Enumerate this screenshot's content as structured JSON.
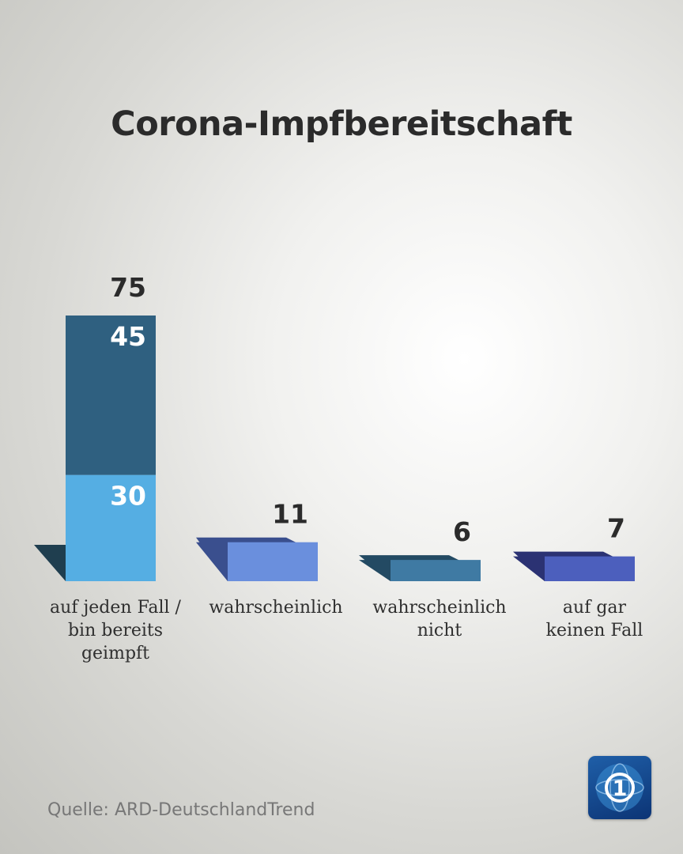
{
  "title": "Corona-Impfbereitschaft",
  "source": "Quelle: ARD-DeutschlandTrend",
  "logo_label": "1",
  "chart_data": {
    "type": "bar",
    "title": "Corona-Impfbereitschaft",
    "categories": [
      "auf jeden Fall / bin bereits geimpft",
      "wahrscheinlich",
      "wahrscheinlich nicht",
      "auf gar keinen Fall"
    ],
    "category_lines": [
      [
        "auf jeden Fall /",
        "bin bereits",
        "geimpft"
      ],
      [
        "wahrscheinlich"
      ],
      [
        "wahrscheinlich",
        "nicht"
      ],
      [
        "auf gar",
        "keinen Fall"
      ]
    ],
    "totals": [
      75,
      11,
      6,
      7
    ],
    "stacked_first_category": [
      {
        "value": 30,
        "color": "#55aee3"
      },
      {
        "value": 45,
        "color": "#2f6080"
      }
    ],
    "colors": [
      "#55aee3",
      "#6a8fdd",
      "#3f7aa3",
      "#4c5fbd"
    ],
    "shadow_colors": [
      "#1f3e4f",
      "#3a4f8e",
      "#234a63",
      "#2b3273"
    ],
    "unit": "percent",
    "grid": false,
    "legend": "none"
  }
}
